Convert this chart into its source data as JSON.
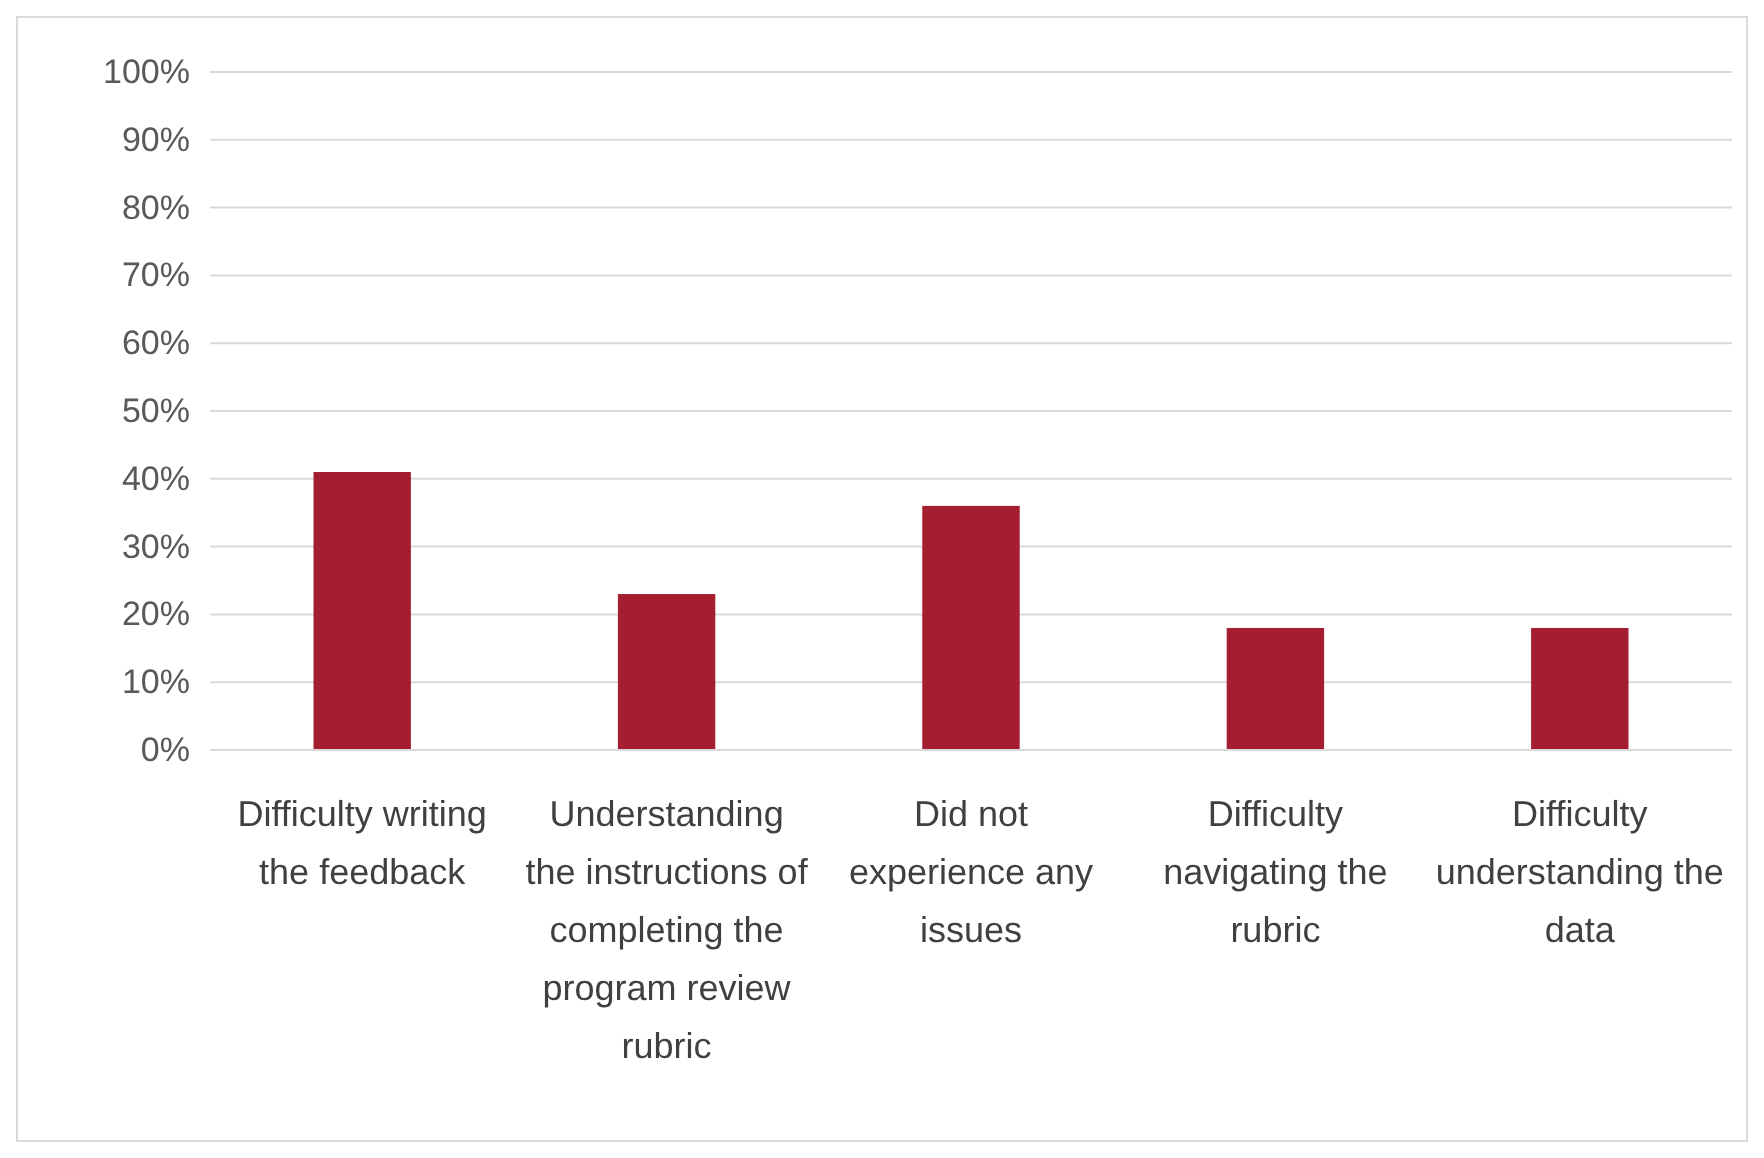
{
  "chart_data": {
    "type": "bar",
    "categories": [
      "Difficulty writing the feedback",
      "Understanding the instructions of completing the program review rubric",
      "Did not experience any issues",
      "Difficulty navigating the rubric",
      "Difficulty understanding the data"
    ],
    "values": [
      41,
      23,
      36,
      18,
      18
    ],
    "color": "#a51d30",
    "ylim": [
      0,
      100
    ],
    "yticks": [
      {
        "value": 0,
        "label": "0%"
      },
      {
        "value": 10,
        "label": "10%"
      },
      {
        "value": 20,
        "label": "20%"
      },
      {
        "value": 30,
        "label": "30%"
      },
      {
        "value": 40,
        "label": "40%"
      },
      {
        "value": 50,
        "label": "50%"
      },
      {
        "value": 60,
        "label": "60%"
      },
      {
        "value": 70,
        "label": "70%"
      },
      {
        "value": 80,
        "label": "80%"
      },
      {
        "value": 90,
        "label": "90%"
      },
      {
        "value": 100,
        "label": "100%"
      }
    ],
    "grid": true
  }
}
